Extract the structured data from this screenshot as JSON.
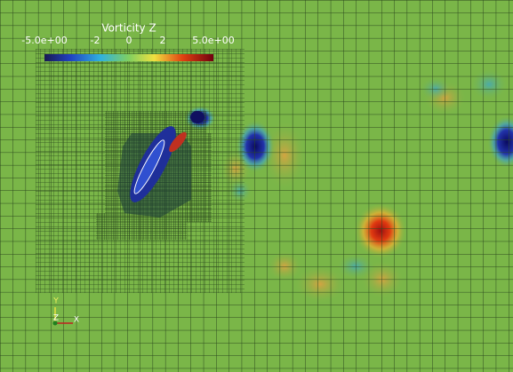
{
  "colorbar": {
    "title": "Vorticity Z",
    "range": [
      -5,
      5
    ],
    "ticks": [
      {
        "value": -5,
        "label": "-5.0e+00"
      },
      -2,
      0,
      2,
      {
        "value": 5,
        "label": "5.0e+00"
      }
    ]
  },
  "axes_triad": {
    "y": "Y",
    "z": "Z",
    "x": "X"
  }
}
